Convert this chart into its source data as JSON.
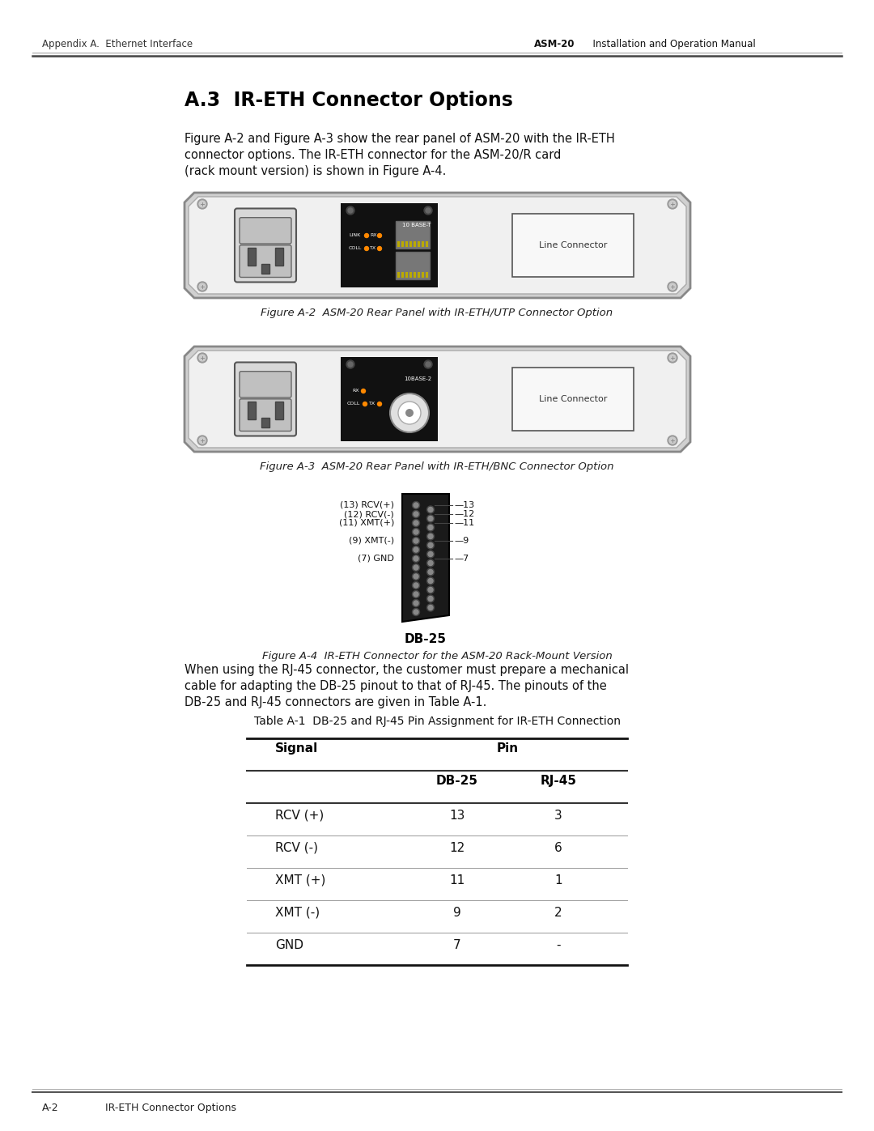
{
  "page_bg": "#ffffff",
  "header_left": "Appendix A.  Ethernet Interface",
  "header_right_bold": "ASM-20",
  "header_right_normal": "  Installation and Operation Manual",
  "section_title": "A.3  IR-ETH Connector Options",
  "intro_lines": [
    "Figure A-2 and Figure A-3 show the rear panel of ASM-20 with the IR-ETH",
    "connector options. The IR-ETH connector for the ASM-20/R card",
    "(rack mount version) is shown in Figure A-4."
  ],
  "fig2_caption": "Figure A-2  ASM-20 Rear Panel with IR-ETH/UTP Connector Option",
  "fig3_caption": "Figure A-3  ASM-20 Rear Panel with IR-ETH/BNC Connector Option",
  "fig4_caption": "Figure A-4  IR-ETH Connector for the ASM-20 Rack-Mount Version",
  "db25_label": "DB-25",
  "connector_labels": [
    "(13) RCV(+)",
    "(12) RCV(-)",
    "(11) XMT(+)",
    "(9) XMT(-)",
    "(7) GND"
  ],
  "connector_pin_nums": [
    "7",
    "9",
    "11",
    "12",
    "13"
  ],
  "table_title": "Table A-1  DB-25 and RJ-45 Pin Assignment for IR-ETH Connection",
  "table_header_signal": "Signal",
  "table_header_pin": "Pin",
  "table_header_db25": "DB-25",
  "table_header_rj45": "RJ-45",
  "table_rows": [
    [
      "RCV (+)",
      "13",
      "3"
    ],
    [
      "RCV (-)",
      "12",
      "6"
    ],
    [
      "XMT (+)",
      "11",
      "1"
    ],
    [
      "XMT (-)",
      "9",
      "2"
    ],
    [
      "GND",
      "7",
      "-"
    ]
  ],
  "body_lines": [
    "When using the RJ-45 connector, the customer must prepare a mechanical",
    "cable for adapting the DB-25 pinout to that of RJ-45. The pinouts of the",
    "DB-25 and RJ-45 connectors are given in Table A-1."
  ],
  "footer_left": "A-2",
  "footer_right": "IR-ETH Connector Options"
}
